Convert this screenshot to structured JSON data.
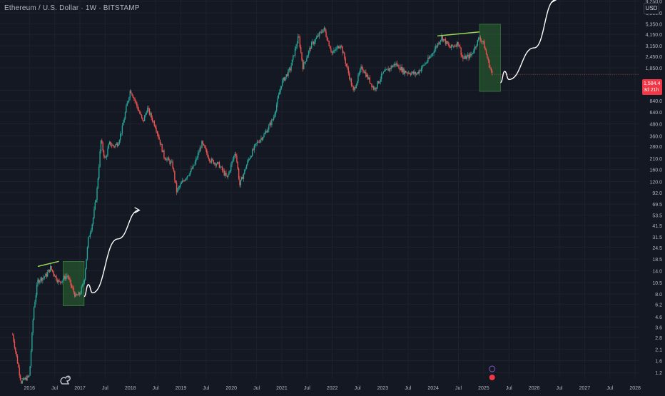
{
  "header": {
    "title": "Ethereum / U.S. Dollar · 1W · BITSTAMP"
  },
  "currency": "USD",
  "last_price": {
    "value": "1,584.4",
    "countdown": "3d 21h"
  },
  "colors": {
    "background": "#141823",
    "up": "#26a69a",
    "down": "#ef5350",
    "grid": "#1e222d",
    "text": "#b2b5be",
    "resistance_line": "#9bd65a",
    "zone_fill": "#2e7d32",
    "projection": "#ffffff"
  },
  "chart_data": {
    "type": "candlestick",
    "title": "Ethereum / U.S. Dollar · 1W · BITSTAMP",
    "scale": "log",
    "xlim": [
      "2015-06",
      "2028-02"
    ],
    "ylim": [
      1.05,
      9500
    ],
    "y_ticks": [
      "1.2",
      "1.6",
      "2.1",
      "2.8",
      "3.6",
      "4.6",
      "6.2",
      "8.0",
      "10.5",
      "14.0",
      "18.5",
      "24.5",
      "31.5",
      "41.5",
      "53.5",
      "69.5",
      "92.0",
      "120.0",
      "160.0",
      "210.0",
      "280.0",
      "360.0",
      "480.0",
      "640.0",
      "840.0",
      "1,080.0",
      "1,850.0",
      "2,450.0",
      "3,150.0",
      "4,150.0",
      "5,350.0",
      "6,950.0",
      "9,250.0"
    ],
    "x_ticks": [
      "2016",
      "Jul",
      "2017",
      "Jul",
      "2018",
      "Jul",
      "2019",
      "Jul",
      "2020",
      "Jul",
      "2021",
      "Jul",
      "2022",
      "Jul",
      "2023",
      "Jul",
      "2024",
      "Jul",
      "2025",
      "Jul",
      "2026",
      "Jul",
      "2027",
      "Jul",
      "2028"
    ],
    "price_path": [
      [
        "2015-09",
        3.0
      ],
      [
        "2015-11",
        0.95
      ],
      [
        "2016-01",
        1.1
      ],
      [
        "2016-02",
        5.5
      ],
      [
        "2016-03",
        11.0
      ],
      [
        "2016-05",
        12.5
      ],
      [
        "2016-06",
        15.0
      ],
      [
        "2016-07",
        12.5
      ],
      [
        "2016-08",
        10.5
      ],
      [
        "2016-10",
        12.5
      ],
      [
        "2016-11",
        9.5
      ],
      [
        "2016-12",
        7.5
      ],
      [
        "2017-01",
        8.0
      ],
      [
        "2017-02",
        11.0
      ],
      [
        "2017-03",
        30.0
      ],
      [
        "2017-04",
        45.0
      ],
      [
        "2017-05",
        90.0
      ],
      [
        "2017-06",
        320.0
      ],
      [
        "2017-07",
        200.0
      ],
      [
        "2017-08",
        300.0
      ],
      [
        "2017-09",
        280.0
      ],
      [
        "2017-10",
        300.0
      ],
      [
        "2017-11",
        420.0
      ],
      [
        "2017-12",
        700.0
      ],
      [
        "2018-01",
        1100.0
      ],
      [
        "2018-02",
        860.0
      ],
      [
        "2018-04",
        500.0
      ],
      [
        "2018-05",
        700.0
      ],
      [
        "2018-07",
        450.0
      ],
      [
        "2018-09",
        220.0
      ],
      [
        "2018-11",
        180.0
      ],
      [
        "2018-12",
        95.0
      ],
      [
        "2019-02",
        130.0
      ],
      [
        "2019-04",
        170.0
      ],
      [
        "2019-06",
        300.0
      ],
      [
        "2019-08",
        200.0
      ],
      [
        "2019-10",
        180.0
      ],
      [
        "2019-12",
        130.0
      ],
      [
        "2020-02",
        250.0
      ],
      [
        "2020-03",
        110.0
      ],
      [
        "2020-05",
        200.0
      ],
      [
        "2020-07",
        300.0
      ],
      [
        "2020-09",
        380.0
      ],
      [
        "2020-11",
        550.0
      ],
      [
        "2021-01",
        1300.0
      ],
      [
        "2021-03",
        1800.0
      ],
      [
        "2021-05",
        4000.0
      ],
      [
        "2021-06",
        1900.0
      ],
      [
        "2021-08",
        3200.0
      ],
      [
        "2021-11",
        4800.0
      ],
      [
        "2022-01",
        2600.0
      ],
      [
        "2022-03",
        3300.0
      ],
      [
        "2022-06",
        1050.0
      ],
      [
        "2022-08",
        1900.0
      ],
      [
        "2022-11",
        1100.0
      ],
      [
        "2023-01",
        1600.0
      ],
      [
        "2023-04",
        2050.0
      ],
      [
        "2023-06",
        1700.0
      ],
      [
        "2023-09",
        1600.0
      ],
      [
        "2023-12",
        2300.0
      ],
      [
        "2024-03",
        3900.0
      ],
      [
        "2024-05",
        3000.0
      ],
      [
        "2024-07",
        3400.0
      ],
      [
        "2024-08",
        2300.0
      ],
      [
        "2024-10",
        2500.0
      ],
      [
        "2024-12",
        3900.0
      ],
      [
        "2025-01",
        3300.0
      ],
      [
        "2025-02",
        2200.0
      ],
      [
        "2025-03",
        1584.4
      ]
    ],
    "annotations": [
      {
        "type": "resistance_line",
        "from": [
          "2016-03",
          15.5
        ],
        "to": [
          "2016-08",
          17.5
        ]
      },
      {
        "type": "resistance_line",
        "from": [
          "2024-02",
          4000
        ],
        "to": [
          "2024-12",
          4400
        ]
      },
      {
        "type": "zone",
        "x": [
          "2016-09",
          "2017-02"
        ],
        "y": [
          6.0,
          17.5
        ]
      },
      {
        "type": "zone",
        "x": [
          "2024-12",
          "2025-05"
        ],
        "y": [
          1050,
          5300
        ]
      },
      {
        "type": "projection_arrow",
        "points": [
          [
            "2017-02",
            7.5
          ],
          [
            "2017-03",
            10.0
          ],
          [
            "2017-04",
            8.2
          ],
          [
            "2017-10",
            30.0
          ],
          [
            "2018-03",
            60.0
          ]
        ]
      },
      {
        "type": "projection_arrow",
        "points": [
          [
            "2025-05",
            1300
          ],
          [
            "2025-06",
            1700
          ],
          [
            "2025-07",
            1400
          ],
          [
            "2026-01",
            3000
          ],
          [
            "2026-06",
            9500
          ]
        ]
      }
    ]
  }
}
